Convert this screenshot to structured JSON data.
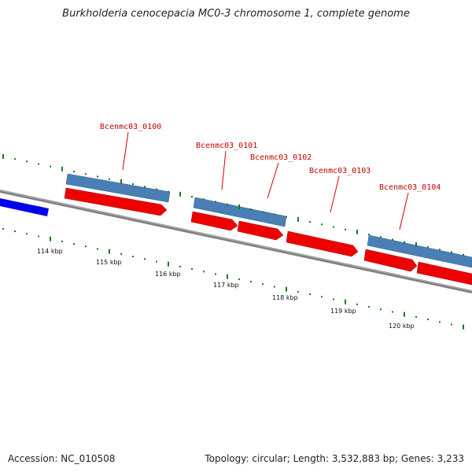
{
  "title": "Burkholderia cenocepacia MC0-3 chromosome 1, complete genome",
  "footer": {
    "accession": "Accession: NC_010508",
    "summary": "Topology: circular; Length: 3,532,883 bp; Genes: 3,233"
  },
  "colors": {
    "backbone": "#808080",
    "forward_gene": "#4a7fb5",
    "reverse_gene": "#ee0000",
    "other_feature": "#0000ee",
    "ticks": "#1a7a1a",
    "label": "#c00000"
  },
  "scale": {
    "ticks_kbp": [
      "114 kbp",
      "115 kbp",
      "116 kbp",
      "117 kbp",
      "118 kbp",
      "119 kbp",
      "120 kbp"
    ]
  },
  "genes": [
    {
      "name": "Bcenmc03_0100"
    },
    {
      "name": "Bcenmc03_0101"
    },
    {
      "name": "Bcenmc03_0102"
    },
    {
      "name": "Bcenmc03_0103"
    },
    {
      "name": "Bcenmc03_0104"
    }
  ]
}
